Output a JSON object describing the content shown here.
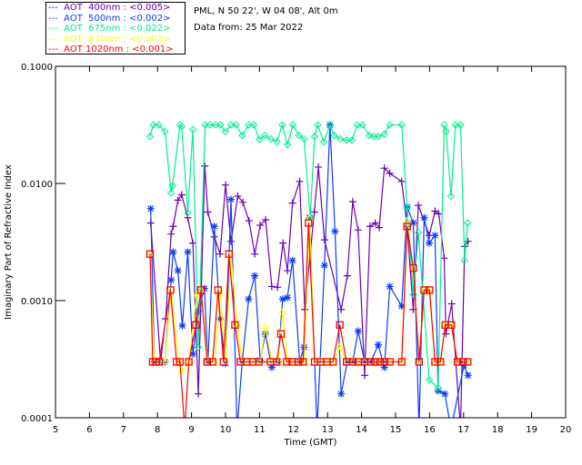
{
  "chart_data": {
    "type": "line",
    "title_lines": [
      "PML, N 50 22', W 04 08', Alt 0m",
      "Data from: 25 Mar 2022"
    ],
    "xlabel": "Time (GMT)",
    "ylabel": "Imaginary Part of Refractive Index",
    "xlim": [
      5,
      20
    ],
    "ylim": [
      0.0001,
      0.1
    ],
    "yscale": "log",
    "x_ticks": [
      "5",
      "6",
      "7",
      "8",
      "9",
      "10",
      "11",
      "12",
      "13",
      "14",
      "15",
      "16",
      "17",
      "18",
      "19",
      "20"
    ],
    "y_ticks": [
      {
        "value": 0.0001,
        "label": "0.0001"
      },
      {
        "value": 0.001,
        "label": "0.0010"
      },
      {
        "value": 0.01,
        "label": "0.0100"
      },
      {
        "value": 0.1,
        "label": "0.1000"
      }
    ],
    "legend_placement": "top-left outside",
    "series": [
      {
        "name": "AOT  400nm : <0.005>",
        "color": "#6a00b8",
        "marker": "plus",
        "x": [
          7.8,
          8.09,
          8.24,
          8.4,
          8.46,
          8.6,
          8.71,
          8.89,
          9.04,
          9.2,
          9.39,
          9.48,
          9.67,
          9.84,
          10.0,
          10.16,
          10.36,
          10.51,
          10.69,
          10.86,
          11.02,
          11.18,
          11.36,
          11.53,
          11.69,
          11.82,
          11.97,
          12.18,
          12.33,
          12.61,
          12.73,
          12.91,
          13.4,
          13.58,
          13.74,
          13.9,
          14.09,
          14.25,
          14.4,
          14.52,
          14.67,
          14.83,
          15.18,
          15.34,
          15.52,
          15.67,
          15.99,
          16.16,
          16.27,
          16.43,
          16.48,
          16.65,
          16.91,
          17.03,
          17.13
        ],
        "y": [
          0.0046,
          0.0003,
          0.0007,
          0.0037,
          0.0043,
          0.0072,
          0.008,
          0.0051,
          0.0031,
          0.00016,
          0.0141,
          0.0057,
          0.0035,
          0.0025,
          0.0097,
          0.0032,
          0.0078,
          0.0069,
          0.0048,
          0.0025,
          0.0044,
          0.0049,
          0.00132,
          0.0013,
          0.0031,
          0.0018,
          0.0068,
          0.0104,
          0.00084,
          0.0057,
          0.0138,
          0.0033,
          0.00084,
          0.00163,
          0.007,
          0.004,
          0.00023,
          0.0043,
          0.0046,
          0.0042,
          0.0135,
          0.0122,
          0.0104,
          0.0043,
          0.00084,
          0.0065,
          0.0036,
          0.0058,
          0.0055,
          0.0023,
          0.00052,
          0.00094,
          8e-05,
          0.0029,
          0.0032
        ]
      },
      {
        "name": "AOT  500nm : <0.002>",
        "color": "#0a3cff",
        "marker": "asterisk",
        "x": [
          7.8,
          7.91,
          8.07,
          8.22,
          8.4,
          8.46,
          8.6,
          8.73,
          8.89,
          9.04,
          9.2,
          9.38,
          9.48,
          9.67,
          9.84,
          10.0,
          10.16,
          10.34,
          10.49,
          10.68,
          10.86,
          11.02,
          11.17,
          11.36,
          11.54,
          11.68,
          11.82,
          11.97,
          12.18,
          12.31,
          12.47,
          12.69,
          12.91,
          13.07,
          13.22,
          13.4,
          13.58,
          13.74,
          13.9,
          14.09,
          14.27,
          14.49,
          14.67,
          14.83,
          15.18,
          15.34,
          15.52,
          15.69,
          15.84,
          15.99,
          16.16,
          16.25,
          16.45,
          16.63,
          17.01,
          17.13
        ],
        "y": [
          0.0061,
          0.0003,
          0.0003,
          0.0003,
          0.0015,
          0.0026,
          0.0018,
          0.00061,
          0.0026,
          0.00035,
          0.00081,
          0.00127,
          0.0003,
          0.0043,
          0.0007,
          0.00029,
          0.0073,
          8e-05,
          0.0003,
          0.00103,
          0.00163,
          0.00031,
          0.00052,
          0.00027,
          0.0003,
          0.00103,
          0.00106,
          0.0022,
          0.0003,
          0.0004,
          0.0051,
          8e-05,
          0.002,
          0.0316,
          0.0039,
          0.00016,
          0.0003,
          0.0003,
          0.00055,
          0.0003,
          0.0003,
          0.00042,
          0.00027,
          0.00132,
          0.0009,
          0.0063,
          0.0046,
          8e-05,
          0.0051,
          0.0031,
          0.0036,
          0.00017,
          0.00016,
          8e-05,
          0.00028,
          0.00023
        ]
      },
      {
        "name": "AOT  675nm : <0.022>",
        "color": "#00f090",
        "marker": "diamond",
        "x": [
          7.78,
          7.88,
          8.04,
          8.22,
          8.4,
          8.44,
          8.66,
          8.71,
          8.89,
          9.04,
          9.2,
          9.4,
          9.54,
          9.71,
          9.85,
          10.0,
          10.16,
          10.31,
          10.49,
          10.68,
          10.83,
          11.0,
          11.16,
          11.33,
          11.51,
          11.67,
          11.82,
          11.98,
          12.16,
          12.31,
          12.49,
          12.62,
          12.71,
          12.89,
          13.07,
          13.2,
          13.38,
          13.56,
          13.72,
          13.87,
          14.03,
          14.23,
          14.36,
          14.49,
          14.67,
          14.83,
          15.18,
          15.34,
          15.52,
          15.67,
          15.99,
          16.25,
          16.43,
          16.49,
          16.63,
          16.76,
          16.91,
          17.03,
          17.12
        ],
        "y": [
          0.0252,
          0.0316,
          0.0316,
          0.0277,
          0.0083,
          0.0096,
          0.0316,
          0.0306,
          0.0056,
          0.0288,
          0.0004,
          0.0316,
          0.0316,
          0.0316,
          0.0316,
          0.0277,
          0.0316,
          0.0316,
          0.0257,
          0.0316,
          0.0316,
          0.0237,
          0.0257,
          0.024,
          0.0227,
          0.0316,
          0.0214,
          0.0316,
          0.0257,
          0.024,
          0.0051,
          0.0252,
          0.0316,
          0.0227,
          0.0316,
          0.0257,
          0.024,
          0.0234,
          0.0234,
          0.0316,
          0.0316,
          0.0257,
          0.0252,
          0.0252,
          0.0264,
          0.0316,
          0.0316,
          0.0063,
          0.00113,
          0.0038,
          0.00021,
          0.00018,
          0.0316,
          0.0277,
          0.0078,
          0.0316,
          0.0316,
          0.0022,
          0.0046
        ]
      },
      {
        "name": "AOT  870nm : <0.001>",
        "color": "#ffff00",
        "marker": "triangle",
        "x": [
          7.78,
          7.91,
          8.07,
          8.22,
          8.4,
          8.62,
          8.71,
          8.92,
          9.15,
          9.28,
          9.48,
          9.67,
          9.84,
          10.0,
          10.16,
          10.34,
          10.49,
          10.68,
          10.86,
          11.02,
          11.17,
          11.36,
          11.54,
          11.68,
          11.82,
          11.97,
          12.18,
          12.31,
          12.47,
          12.62,
          12.8,
          12.98,
          13.16,
          13.36,
          13.56,
          13.74,
          13.9,
          14.09,
          14.27,
          14.49,
          14.67,
          14.83,
          15.18,
          15.34,
          15.52,
          15.69,
          15.84,
          15.99,
          16.16,
          16.32,
          16.46,
          16.64,
          16.82,
          16.98,
          17.12
        ],
        "y": [
          0.0025,
          0.0003,
          0.0003,
          0.0003,
          0.00123,
          0.0003,
          0.00025,
          0.0003,
          0.0011,
          0.00123,
          0.0003,
          0.0003,
          0.00123,
          0.0003,
          0.0025,
          0.00062,
          0.0003,
          0.0003,
          0.0003,
          0.0003,
          0.0006,
          0.0003,
          0.0003,
          0.0008,
          0.0003,
          0.0003,
          0.0003,
          0.0003,
          0.005,
          0.0003,
          0.0003,
          0.0003,
          0.0003,
          0.0004,
          0.0003,
          0.0003,
          0.0003,
          0.0003,
          0.0003,
          0.0003,
          0.0003,
          0.0003,
          0.0003,
          0.0048,
          0.0019,
          0.0003,
          0.00123,
          0.00123,
          0.0003,
          0.0003,
          0.00062,
          0.00062,
          0.0003,
          0.0003,
          0.0003
        ]
      },
      {
        "name": "AOT 1020nm : <0.001>",
        "color": "#ff0000",
        "marker": "square",
        "x": [
          7.78,
          7.86,
          7.96,
          8.05,
          8.38,
          8.56,
          8.66,
          8.8,
          8.92,
          9.13,
          9.28,
          9.46,
          9.62,
          9.78,
          9.94,
          10.1,
          10.28,
          10.44,
          10.62,
          10.8,
          10.98,
          11.32,
          11.5,
          11.63,
          11.8,
          11.96,
          12.14,
          12.28,
          12.44,
          12.62,
          12.8,
          12.98,
          13.16,
          13.36,
          13.56,
          13.74,
          13.9,
          14.09,
          14.27,
          14.4,
          14.54,
          14.67,
          14.83,
          15.18,
          15.34,
          15.52,
          15.69,
          15.84,
          16.0,
          16.16,
          16.32,
          16.46,
          16.64,
          16.82,
          16.98,
          17.12
        ],
        "y": [
          0.0025,
          0.0003,
          0.0003,
          0.0003,
          0.00123,
          0.0003,
          0.0003,
          8e-05,
          0.0003,
          0.00062,
          0.00123,
          0.0003,
          0.0003,
          0.00123,
          0.0003,
          0.0025,
          0.00062,
          0.0003,
          0.0003,
          0.0003,
          0.0003,
          0.0003,
          0.0003,
          0.00052,
          0.0003,
          0.0003,
          0.0003,
          0.0003,
          0.0046,
          0.0003,
          0.0003,
          0.0003,
          0.0003,
          0.00062,
          0.0003,
          0.0003,
          0.0003,
          0.0003,
          0.0003,
          0.0003,
          0.0003,
          0.0003,
          0.0003,
          0.0003,
          0.0043,
          0.0019,
          0.0003,
          0.00123,
          0.00123,
          0.0003,
          0.0003,
          0.00062,
          0.00062,
          0.0003,
          0.0003,
          0.0003
        ]
      }
    ]
  }
}
